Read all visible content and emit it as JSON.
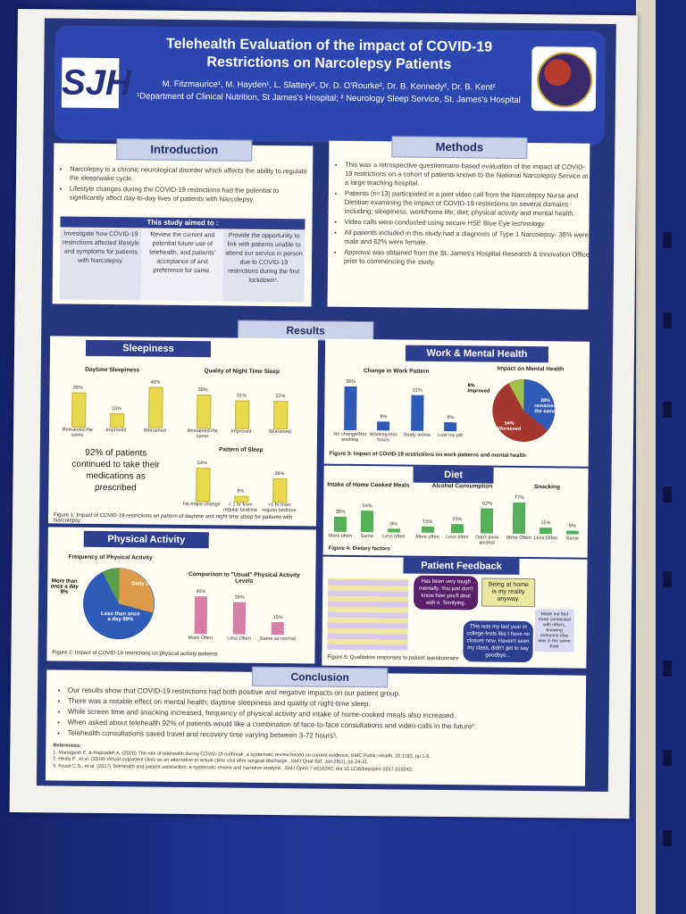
{
  "poster": {
    "title_line1": "Telehealth Evaluation of the impact of COVID-19",
    "title_line2": "Restrictions on Narcolepsy Patients",
    "authors": "M. Fitzmaurice¹, M. Hayden¹, L. Slattery², Dr. D. O'Rourke², Dr. B. Kennedy², Dr. B. Kent²",
    "affiliation": "¹Department of Clinical Nutrition, St James's Hospital; ² Neurology Sleep Service, St. James's Hospital",
    "logo_text": "SJH"
  },
  "introduction": {
    "heading": "Introduction",
    "bullets": [
      "Narcolepsy is a chronic neurological disorder which affects the ability to regulate the sleep/wake cycle.",
      "Lifestyle changes during the COVID-19 restrictions had the potential to significantly affect day-to-day lives of patients with Narcolepsy."
    ],
    "aim_heading": "This study aimed to :",
    "aims": [
      "Investigate how COVID-19 restrictions affected lifestyle and symptoms for patients with Narcolepsy.",
      "Review the current and potential future use of telehealth, and patients' acceptance of and preference for same.",
      "Provide the opportunity to link with patients unable to attend our service in person due to COVID-19 restrictions during the first lockdown¹."
    ]
  },
  "methods": {
    "heading": "Methods",
    "bullets": [
      "This was a retrospective questionnaire-based evaluation of the impact of COVID-19 restrictions on a cohort of patients known to the National Narcolepsy Service at a large teaching hospital.",
      "Patients (n=13) participated in a joint video call from the Narcolepsy Nurse and Dietitian examining the impact of COVID-19 restrictions on several domains including; sleepiness, work/home life; diet; physical activity and mental health.",
      "Video calls were conducted using secure HSE Blue Eye technology.",
      "All patients included in this study had a diagnosis of Type 1 Narcolepsy- 38% were male and 62% were female.",
      "Approval was obtained from the St. James's Hospital Research & Innovation Office prior to commencing the study."
    ]
  },
  "results": {
    "heading": "Results",
    "sleepiness": {
      "heading": "Sleepiness",
      "daytime": {
        "title": "Daytime Sleepiness",
        "categories": [
          "Remained the same",
          "Improved",
          "Worsened"
        ],
        "values": [
          39,
          15,
          46
        ],
        "labels": [
          "39%",
          "15%",
          "46%"
        ]
      },
      "night": {
        "title": "Quality of Night Time Sleep",
        "categories": [
          "Remained the same",
          "Improved",
          "Worsened"
        ],
        "values": [
          38,
          31,
          31
        ],
        "labels": [
          "38%",
          "31%",
          "31%"
        ]
      },
      "pattern": {
        "title": "Pattern of Sleep",
        "categories": [
          "No major change",
          "< 1 hr from regular bedtime",
          ">1 hr from regular bedtime"
        ],
        "values": [
          54,
          8,
          38
        ],
        "labels": [
          "54%",
          "8%",
          "38%"
        ]
      },
      "stat_text": "92% of patients continued to take their medications as prescribed",
      "caption": "Figure 1: Impact of COVID-19 restrictions on pattern of daytime and night time sleep for patients with Narcolepsy"
    },
    "physical": {
      "heading": "Physical Activity",
      "pie_title": "Frequency of Physical Activity",
      "pie_labels": [
        "More than once a day 8%",
        "Daily 23%",
        "Less than once a day 69%"
      ],
      "bar_title": "Comparison to \"Usual\" Physical Activity Levels",
      "categories": [
        "More Often",
        "Less Often",
        "Same as normal"
      ],
      "values": [
        46,
        39,
        15
      ],
      "labels": [
        "46%",
        "39%",
        "15%"
      ],
      "caption": "Figure 2: Impact of COVID-19 restrictions on physical activity patterns"
    },
    "work": {
      "heading": "Work & Mental Health",
      "bar_title": "Change in Work Pattern",
      "categories": [
        "No change/Not working",
        "Working less hours",
        "Study online",
        "Lost my job"
      ],
      "values": [
        38,
        8,
        31,
        8
      ],
      "labels": [
        "38%",
        "8%",
        "31%",
        "8%"
      ],
      "pie_title": "Impact on Mental Health",
      "pie_labels": [
        "8% Improved",
        "38% remained the same",
        "54% Worsened"
      ],
      "caption": "Figure 3: Impact of COVID-19 restrictions on work patterns and mental health"
    },
    "diet": {
      "heading": "Diet",
      "charts": [
        {
          "title": "Intake of Home Cooked Meals",
          "categories": [
            "More often",
            "Same",
            "Less often"
          ],
          "values": [
            38,
            54,
            8
          ],
          "labels": [
            "38%",
            "54%",
            "8%"
          ]
        },
        {
          "title": "Alcohol Consumption",
          "categories": [
            "More often",
            "Less often",
            "Don't drink alcohol"
          ],
          "values": [
            15,
            23,
            62
          ],
          "labels": [
            "15%",
            "23%",
            "62%"
          ]
        },
        {
          "title": "Snacking",
          "categories": [
            "More Often",
            "Less Often",
            "Same"
          ],
          "values": [
            77,
            15,
            8
          ],
          "labels": [
            "77%",
            "15%",
            "8%"
          ]
        }
      ],
      "caption": "Figure 4: Dietary factors"
    },
    "feedback": {
      "heading": "Patient Feedback",
      "quotes": [
        "Has been very tough mentally. You just don't know how you'll deal with it. Terrifying.",
        "Being at home is my reality anyway.",
        "Made me feel more connected with others, knowing everyone else was in the same boat",
        "This was my last year in college-feels like I have no closure now. Haven't seen my class, didn't get to say goodbye..."
      ],
      "caption": "Figure 5: Qualitative responses to patient questionnaire"
    }
  },
  "conclusion": {
    "heading": "Conclusion",
    "bullets": [
      "Our results show that COVID-19 restrictions had both positive and negative impacts on our patient group.",
      "There was a notable effect on mental health; daytime sleepiness and quality of night-time sleep.",
      "While screen time and snacking increased, frequency of physical activity and intake of home-cooked meals also increased.",
      "When asked about telehealth 92% of patients would like a combination of face-to-face consultations and video-calls in the future².",
      "Telehealth consultations saved travel and recovery time varying between 3-72 hours³."
    ],
    "references_heading": "References:",
    "references": [
      "1. Managesh E. & Hajizadeh A. (2020) The role of telehealth during COVID-19 outbreak: a systematic review based on current evidence, BMC Public Health, 20:1193, pp.1-9.",
      "2. Healy P., et al. (2019) Virtual outpatient clinic as an alternative to actual clinic visit after surgical discharge , BMJ Qual Saf, Jan;28(1), pp.24-31.",
      "3. Kruse C.S., et al. (2017) Telehealth and patient satisfaction: a systematic review and narrative analysis , BMJ Open;7:e016242. doi:10.1136/bmjopen-2017-016242."
    ]
  },
  "colors": {
    "navy": "#26367f",
    "header_blue": "#2d47b0",
    "panel": "#fffcf2",
    "yellow": "#e9d94f",
    "green": "#55b05a",
    "pink": "#d77ea7"
  }
}
